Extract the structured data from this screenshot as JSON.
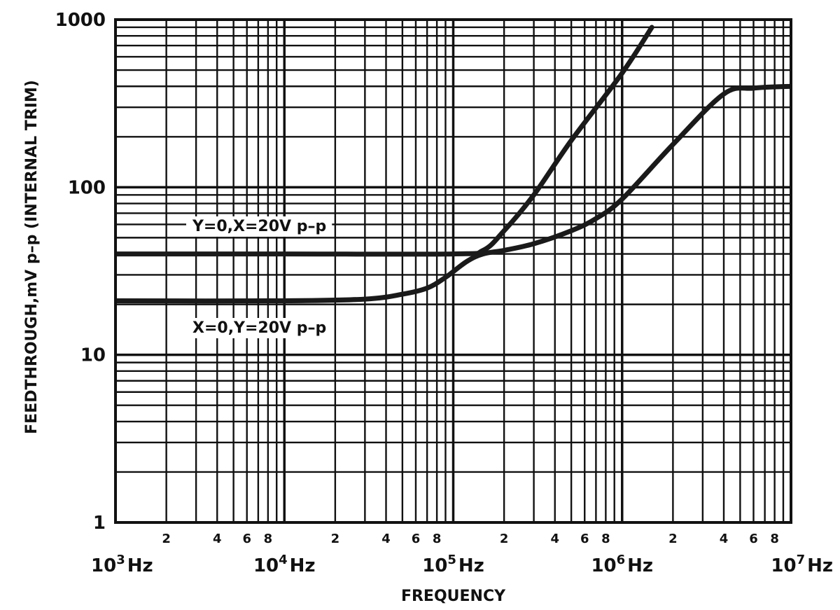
{
  "chart_data": {
    "type": "line",
    "title": "",
    "xlabel": "FREQUENCY",
    "ylabel": "FEEDTHROUGH,mV p–p (INTERNAL TRIM)",
    "x_scale": "log",
    "y_scale": "log",
    "xlim": [
      1000,
      10000000
    ],
    "ylim": [
      1,
      1000
    ],
    "grid": true,
    "x_decade_labels": [
      {
        "value": 1000,
        "base": "10",
        "exp": "3",
        "unit": "Hz"
      },
      {
        "value": 10000,
        "base": "10",
        "exp": "4",
        "unit": "Hz"
      },
      {
        "value": 100000,
        "base": "10",
        "exp": "5",
        "unit": "Hz"
      },
      {
        "value": 1000000,
        "base": "10",
        "exp": "6",
        "unit": "Hz"
      },
      {
        "value": 10000000,
        "base": "10",
        "exp": "7",
        "unit": "Hz"
      }
    ],
    "x_minor_labels": [
      "2",
      "4",
      "6",
      "8"
    ],
    "y_tick_labels": [
      {
        "value": 1,
        "label": "1"
      },
      {
        "value": 10,
        "label": "10"
      },
      {
        "value": 100,
        "label": "100"
      },
      {
        "value": 1000,
        "label": "1000"
      }
    ],
    "series": [
      {
        "name": "Y=0,X=20V p–p",
        "x": [
          1000,
          10000,
          100000,
          150000,
          200000,
          300000,
          500000,
          1000000,
          1500000
        ],
        "y": [
          40,
          40,
          40,
          42,
          55,
          90,
          190,
          480,
          900
        ]
      },
      {
        "name": "X=0,Y=20V p–p",
        "x": [
          1000,
          10000,
          30000,
          50000,
          70000,
          90000,
          120000,
          150000,
          200000,
          300000,
          500000,
          700000,
          1000000,
          2000000,
          4000000,
          6000000,
          10000000
        ],
        "y": [
          21,
          21,
          21.5,
          23,
          25,
          29,
          36,
          40,
          42,
          46,
          55,
          65,
          85,
          180,
          360,
          390,
          400
        ]
      }
    ],
    "annotations": [
      {
        "text": "Y=0,X=20V p–p",
        "series": 0
      },
      {
        "text": "X=0,Y=20V p–p",
        "series": 1
      }
    ],
    "colors": {
      "line": "#1a1a1a",
      "grid": "#111111",
      "background": "#ffffff"
    }
  }
}
